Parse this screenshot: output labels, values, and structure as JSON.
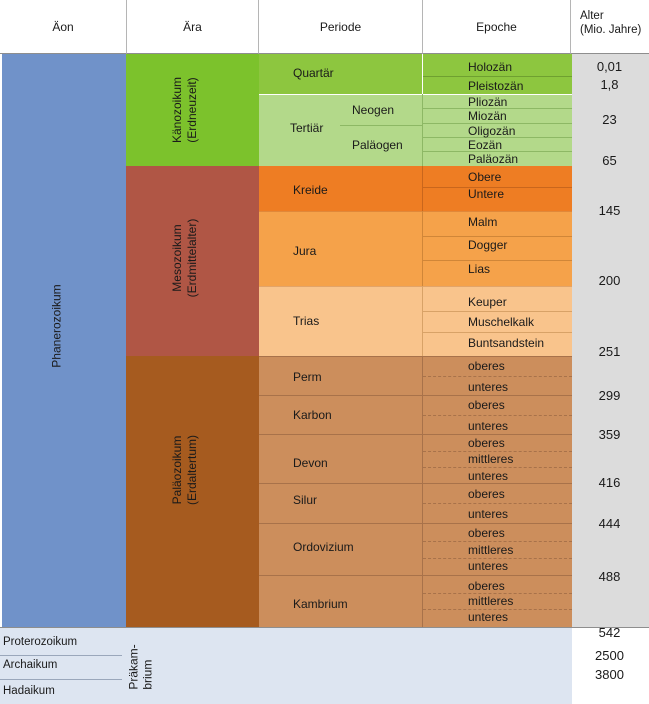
{
  "header": {
    "aeon": "Äon",
    "era": "Ära",
    "period": "Periode",
    "epoch": "Epoche",
    "age_line1": "Alter",
    "age_line2": "(Mio. Jahre)"
  },
  "aeons": {
    "phanerozoic": "Phanerozoikum",
    "proterozoic": "Proterozoikum",
    "archean": "Archaikum",
    "hadean": "Hadaikum",
    "precambrian_line1": "Präkam-",
    "precambrian_line2": "brium"
  },
  "eras": {
    "cenozoic": "Känozoikum",
    "cenozoic_sub": "(Erdneuzeit)",
    "mesozoic": "Mesozoikum",
    "mesozoic_sub": "(Erdmittelalter)",
    "paleozoic": "Paläozoikum",
    "paleozoic_sub": "(Erdaltertum)"
  },
  "periods": {
    "quaternary": "Quartär",
    "tertiary": "Tertiär",
    "neogene": "Neogen",
    "paleogene": "Paläogen",
    "cretaceous": "Kreide",
    "jurassic": "Jura",
    "triassic": "Trias",
    "permian": "Perm",
    "carboniferous": "Karbon",
    "devonian": "Devon",
    "silurian": "Silur",
    "ordovician": "Ordovizium",
    "cambrian": "Kambrium"
  },
  "epochs": {
    "holocene": "Holozän",
    "pleistocene": "Pleistozän",
    "pliocene": "Pliozän",
    "miocene": "Miozän",
    "oligocene": "Oligozän",
    "eocene": "Eozän",
    "paleocene": "Paläozän",
    "kreide_upper": "Obere",
    "kreide_lower": "Untere",
    "malm": "Malm",
    "dogger": "Dogger",
    "lias": "Lias",
    "keuper": "Keuper",
    "muschelkalk": "Muschelkalk",
    "buntsandstein": "Buntsandstein",
    "upper": "oberes",
    "middle": "mittleres",
    "lower": "unteres"
  },
  "ages": {
    "a001": "0,01",
    "a18": "1,8",
    "a23": "23",
    "a65": "65",
    "a145": "145",
    "a200": "200",
    "a251": "251",
    "a299": "299",
    "a359": "359",
    "a416": "416",
    "a444": "444",
    "a488": "488",
    "a542": "542",
    "a2500": "2500",
    "a3800": "3800"
  },
  "colors": {
    "phanerozoic": "#7092c9",
    "cenozoic": "#7cc22c",
    "mesozoic": "#b05645",
    "paleozoic": "#a65b1f",
    "quaternary": "#8dc63f",
    "tertiary": "#b3d98a",
    "cretaceous": "#ee7d23",
    "jurassic": "#f5a24a",
    "triassic": "#f9c48c",
    "paleozoic_periods": "#cc8e5c",
    "precambrian": "#dde5f1",
    "age_column": "#dcdcdc"
  }
}
